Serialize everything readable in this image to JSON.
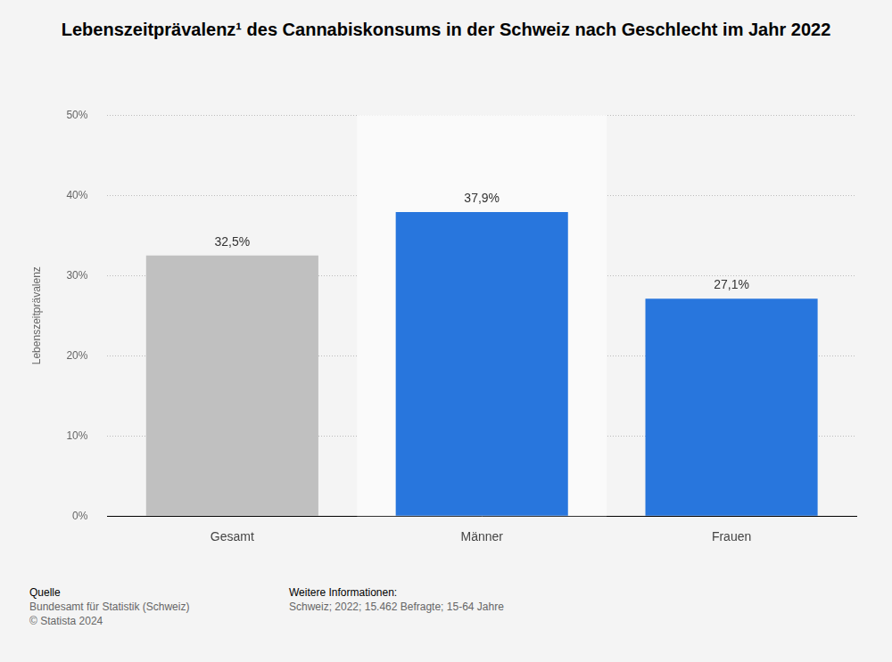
{
  "chart_data": {
    "type": "bar",
    "title": "Lebenszeitprävalenz¹ des Cannabiskonsums in der Schweiz nach Geschlecht im Jahr 2022",
    "y_label": "Lebenszeitprävalenz",
    "categories": [
      "Gesamt",
      "Männer",
      "Frauen"
    ],
    "values": [
      32.5,
      37.9,
      27.1
    ],
    "value_labels": [
      "32,5%",
      "37,9%",
      "27,1%"
    ],
    "colors": [
      "#c0c0c0",
      "#2876dd",
      "#2876dd"
    ],
    "ylim": [
      0,
      50
    ],
    "yticks": [
      {
        "value": 0,
        "label": "0%"
      },
      {
        "value": 10,
        "label": "10%"
      },
      {
        "value": 20,
        "label": "20%"
      },
      {
        "value": 30,
        "label": "30%"
      },
      {
        "value": 40,
        "label": "40%"
      },
      {
        "value": 50,
        "label": "50%"
      }
    ],
    "grid": true,
    "data_labels": true
  },
  "footer": {
    "source_label": "Quelle",
    "source": [
      "Bundesamt für Statistik (Schweiz)",
      "© Statista 2024"
    ],
    "info_label": "Weitere Informationen:",
    "info": "Schweiz; 2022; 15.462 Befragte; 15-64 Jahre"
  }
}
